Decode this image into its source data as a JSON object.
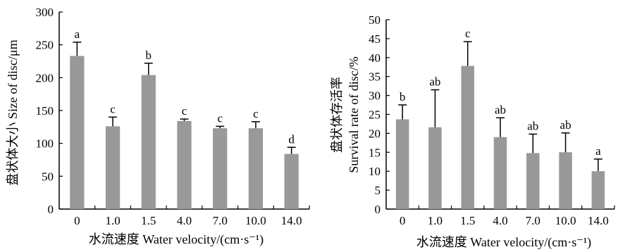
{
  "chart_data": [
    {
      "type": "bar",
      "xlabel": "水流速度 Water velocity/(cm·s⁻¹)",
      "ylabel": "盘状体大小 Size of disc/μm",
      "ylabel_lines": [
        "盘状体大小 Size of disc/μm"
      ],
      "categories": [
        "0",
        "1.0",
        "1.5",
        "4.0",
        "7.0",
        "10.0",
        "14.0"
      ],
      "values": [
        233,
        126,
        204,
        134,
        123,
        123,
        84
      ],
      "errors": [
        21,
        14,
        18,
        3,
        3,
        10,
        10
      ],
      "labels": [
        "a",
        "c",
        "b",
        "c",
        "c",
        "c",
        "d"
      ],
      "ylim": [
        0,
        300
      ],
      "yticks": [
        "0",
        "50",
        "100",
        "150",
        "200",
        "250",
        "300"
      ],
      "bar_color": "#999999"
    },
    {
      "type": "bar",
      "xlabel": "水流速度 Water velocity/(cm·s⁻¹)",
      "ylabel": "盘状体存活率 Survival rate of disc/%",
      "ylabel_lines": [
        "盘状体存活率",
        "Survival rate of disc/%"
      ],
      "categories": [
        "0",
        "1.0",
        "1.5",
        "4.0",
        "7.0",
        "10.0",
        "14.0"
      ],
      "values": [
        23.7,
        21.6,
        37.8,
        19.0,
        14.8,
        15.0,
        10.0
      ],
      "errors": [
        3.8,
        9.9,
        6.4,
        5.1,
        5.0,
        5.1,
        3.2
      ],
      "labels": [
        "b",
        "ab",
        "c",
        "ab",
        "ab",
        "ab",
        "a"
      ],
      "ylim": [
        0,
        50
      ],
      "yticks": [
        "0",
        "5",
        "10",
        "15",
        "20",
        "25",
        "30",
        "35",
        "40",
        "45",
        "50"
      ],
      "bar_color": "#999999"
    }
  ]
}
